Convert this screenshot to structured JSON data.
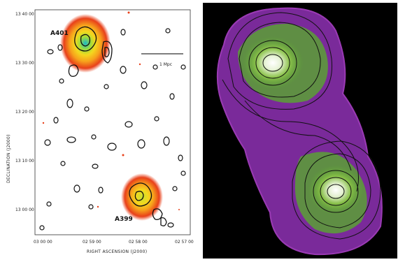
{
  "left_panel": {
    "cluster_labels": {
      "north": "A401",
      "south": "A399"
    },
    "scale_bar_label": "1 Mpc",
    "y_axis_label": "DECLINATION (J2000)",
    "x_axis_label": "RIGHT ASCENSION (J2000)",
    "y_ticks": [
      "13 40 00",
      "13 30 00",
      "13 20 00",
      "13 10 00",
      "13 00 00"
    ],
    "x_ticks": [
      "03 00 00",
      "02 59 00",
      "02 58 00",
      "02 57 00"
    ]
  },
  "right_panel": {},
  "colors": {
    "contour_left": "#111111",
    "heat_red": "#e8401a",
    "heat_orange": "#f7a21c",
    "heat_yellow": "#e7e82a",
    "heat_cyan": "#1ab8c8",
    "xray_purple": "#7a2a9a",
    "xray_green": "#5aa035",
    "xray_white": "#ffffff"
  }
}
